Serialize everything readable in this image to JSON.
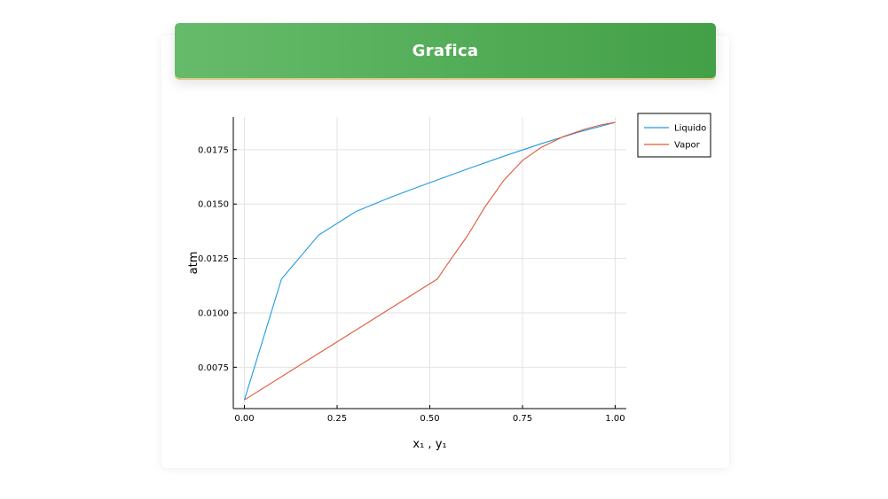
{
  "header": {
    "title": "Grafica"
  },
  "colors": {
    "header_start": "#66bb6a",
    "header_end": "#43a047",
    "liquido": "#1e9be0",
    "vapor": "#e2583a",
    "grid": "#e2e2e2"
  },
  "chart_data": {
    "type": "line",
    "title": "",
    "xlabel": "x₁ , y₁",
    "ylabel": "atm",
    "xlim": [
      -0.03,
      1.03
    ],
    "ylim": [
      0.0056,
      0.019
    ],
    "xticks": [
      0.0,
      0.25,
      0.5,
      0.75,
      1.0
    ],
    "xtick_labels": [
      "0.00",
      "0.25",
      "0.50",
      "0.75",
      "1.00"
    ],
    "yticks": [
      0.0075,
      0.01,
      0.0125,
      0.015,
      0.0175
    ],
    "ytick_labels": [
      "0.0075",
      "0.0100",
      "0.0125",
      "0.0150",
      "0.0175"
    ],
    "grid": true,
    "legend_position": "outside-top-right",
    "series": [
      {
        "name": "Liquido",
        "color_key": "liquido",
        "x": [
          0.0,
          0.1,
          0.2,
          0.3,
          0.4,
          0.5,
          0.6,
          0.7,
          0.8,
          0.9,
          1.0
        ],
        "y": [
          0.006,
          0.01155,
          0.01357,
          0.01465,
          0.01535,
          0.01598,
          0.0166,
          0.0172,
          0.01777,
          0.0183,
          0.01875
        ]
      },
      {
        "name": "Vapor",
        "color_key": "vapor",
        "x": [
          0.0,
          0.52,
          0.55,
          0.6,
          0.65,
          0.7,
          0.75,
          0.8,
          0.86,
          0.92,
          0.96,
          1.0
        ],
        "y": [
          0.006,
          0.01155,
          0.0123,
          0.0135,
          0.0149,
          0.0161,
          0.017,
          0.0176,
          0.0181,
          0.01845,
          0.01863,
          0.01875
        ]
      }
    ]
  }
}
